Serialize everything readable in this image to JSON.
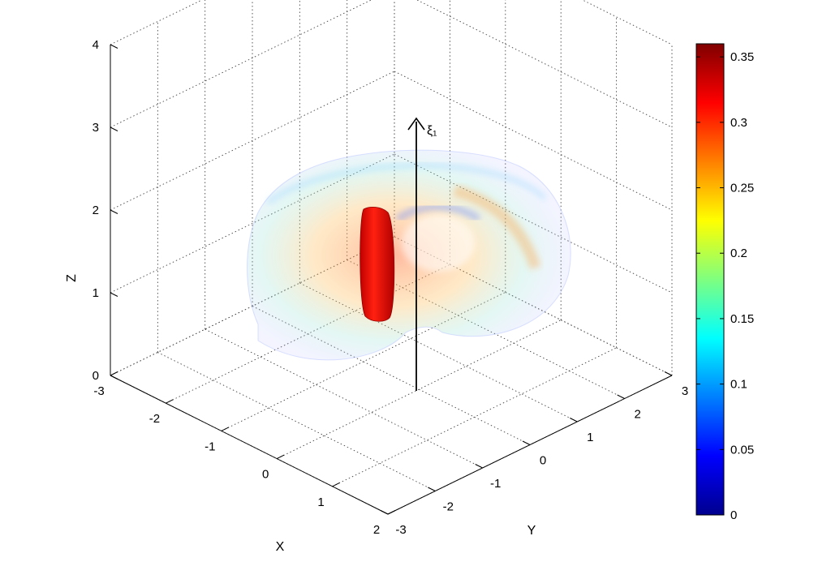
{
  "chart_data": {
    "type": "surface3d",
    "title": "",
    "xlabel": "X",
    "ylabel": "Y",
    "zlabel": "Z",
    "xlim": [
      -3,
      2
    ],
    "ylim": [
      -3,
      3
    ],
    "zlim": [
      0,
      4
    ],
    "xticks": [
      "-3",
      "-2",
      "-1",
      "0",
      "1",
      "2"
    ],
    "yticks": [
      "-3",
      "-2",
      "-1",
      "0",
      "1",
      "2",
      "3"
    ],
    "zticks": [
      "0",
      "1",
      "2",
      "3",
      "4"
    ],
    "grid": true,
    "annotation": "ξ₁",
    "colorbar": {
      "colormap": "jet",
      "min": 0,
      "max": 0.36,
      "ticks": [
        "0",
        "0.05",
        "0.1",
        "0.15",
        "0.2",
        "0.25",
        "0.3",
        "0.35"
      ]
    },
    "series": [
      {
        "shape": "torus",
        "opacity": "translucent",
        "colormap": "jet"
      },
      {
        "shape": "slab",
        "opacity": "opaque",
        "color": "#e0150f"
      }
    ]
  }
}
